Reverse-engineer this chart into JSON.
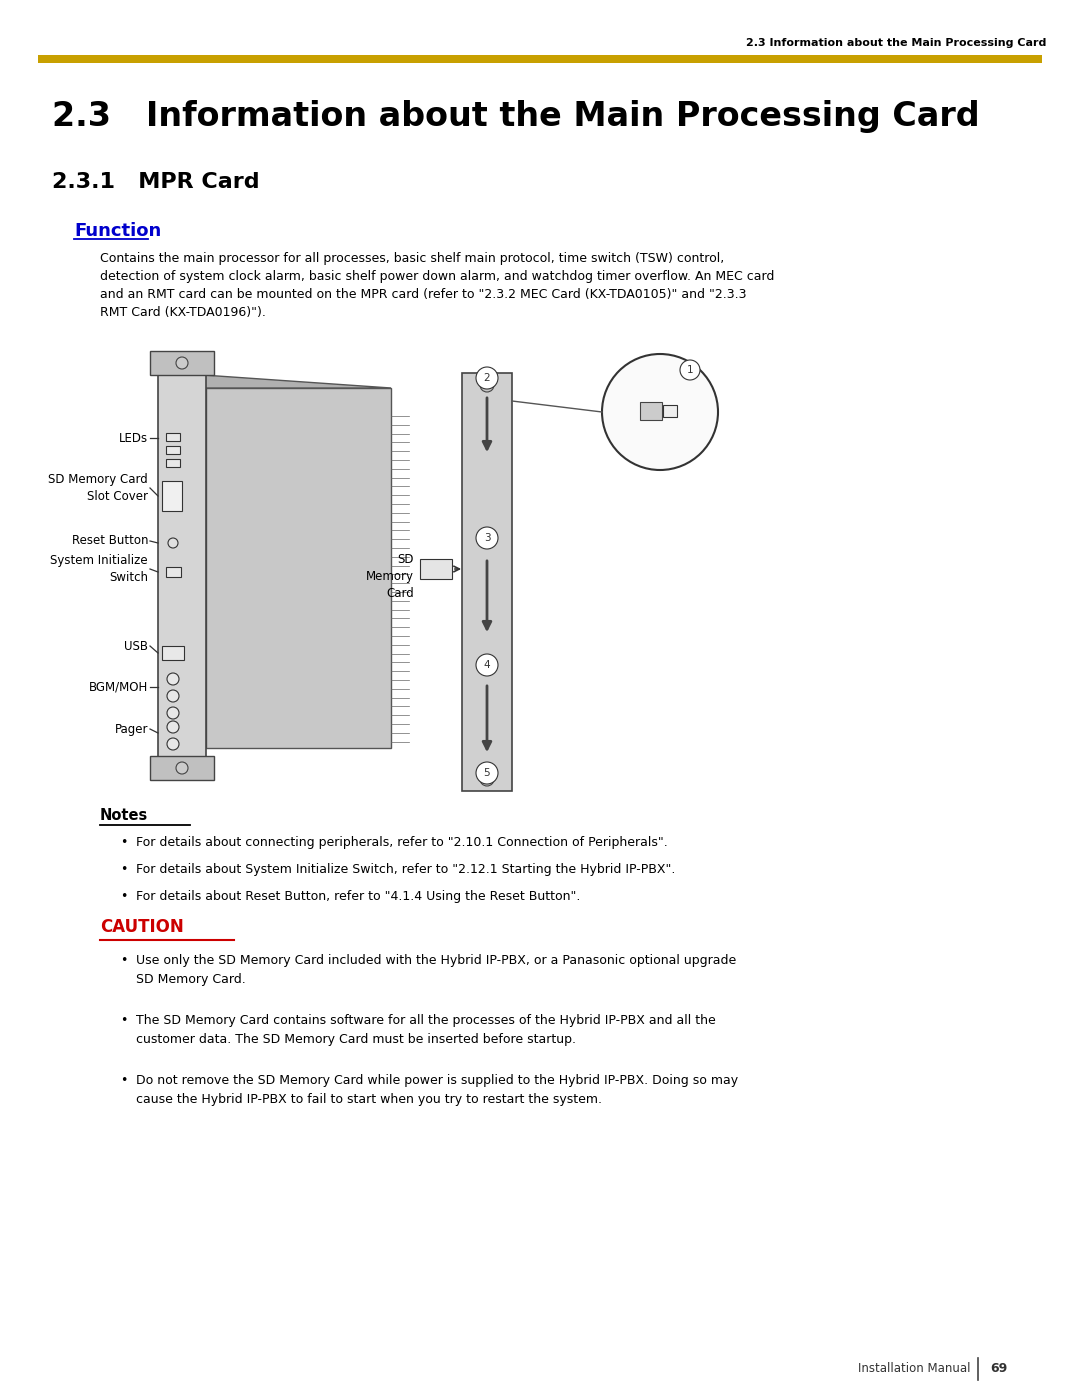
{
  "page_title": "2.3   Information about the Main Processing Card",
  "header_text": "2.3 Information about the Main Processing Card",
  "section_title": "2.3.1   MPR Card",
  "function_label": "Function",
  "body_text_lines": [
    "Contains the main processor for all processes, basic shelf main protocol, time switch (TSW) control,",
    "detection of system clock alarm, basic shelf power down alarm, and watchdog timer overflow. An MEC card",
    "and an RMT card can be mounted on the MPR card (refer to \"2.3.2 MEC Card (KX-TDA0105)\" and \"2.3.3",
    "RMT Card (KX-TDA0196)\")."
  ],
  "notes_title": "Notes",
  "notes": [
    "For details about connecting peripherals, refer to \"2.10.1 Connection of Peripherals\".",
    "For details about System Initialize Switch, refer to \"2.12.1 Starting the Hybrid IP-PBX\".",
    "For details about Reset Button, refer to \"4.1.4 Using the Reset Button\"."
  ],
  "caution_title": "CAUTION",
  "caution_items": [
    "Use only the SD Memory Card included with the Hybrid IP-PBX, or a Panasonic optional upgrade\nSD Memory Card.",
    "The SD Memory Card contains software for all the processes of the Hybrid IP-PBX and all the\ncustomer data. The SD Memory Card must be inserted before startup.",
    "Do not remove the SD Memory Card while power is supplied to the Hybrid IP-PBX. Doing so may\ncause the Hybrid IP-PBX to fail to start when you try to restart the system."
  ],
  "footer_text": "Installation Manual",
  "page_number": "69",
  "yellow_color": "#C8A000",
  "function_color": "#0000CC",
  "caution_color": "#CC0000",
  "bg_color": "#FFFFFF",
  "text_color": "#000000",
  "sd_label": "SD\nMemory\nCard"
}
